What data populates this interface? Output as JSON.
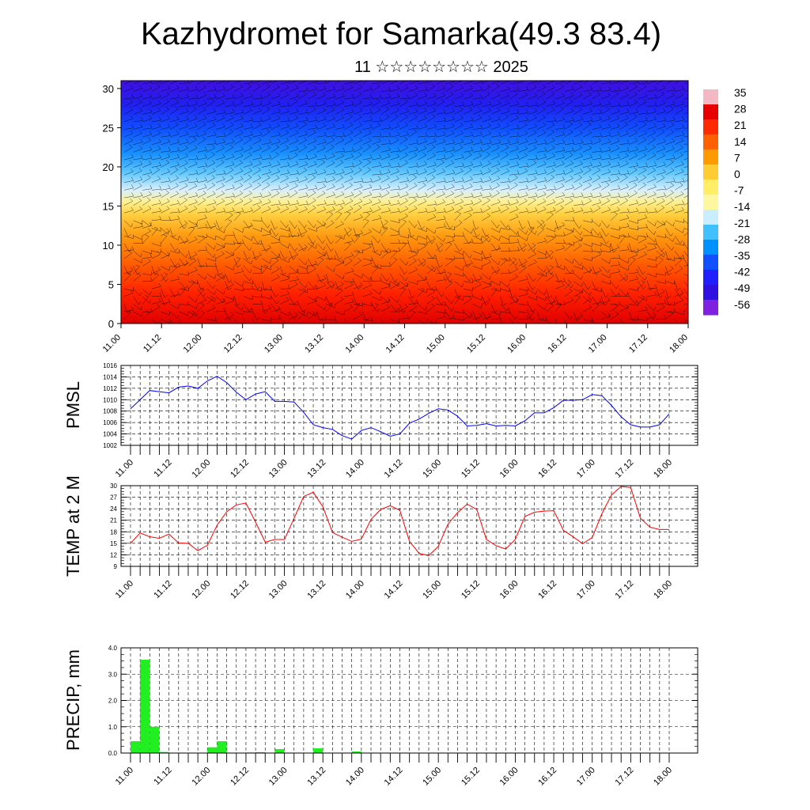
{
  "title": "Kazhydromet for Samarka(49.3 83.4)",
  "subtitle": "11 ☆☆☆☆☆☆☆☆ 2025",
  "time_labels": [
    "11.00",
    "11.12",
    "12.00",
    "12.12",
    "13.00",
    "13.12",
    "14.00",
    "14.12",
    "15.00",
    "15.12",
    "16.00",
    "16.12",
    "17.00",
    "17.12",
    "18.00"
  ],
  "colors": {
    "pmsl_line": "#0000ff",
    "temp_line": "#ff0000",
    "precip_bar": "#22ee22",
    "grid": "#000000"
  },
  "chart_data": [
    {
      "type": "heatmap",
      "description_key": "vertical temperature cross-section with wind barbs",
      "x_ticks": [
        "11.00",
        "11.12",
        "12.00",
        "12.12",
        "13.00",
        "13.12",
        "14.00",
        "14.12",
        "15.00",
        "15.12",
        "16.00",
        "16.12",
        "17.00",
        "17.12",
        "18.00"
      ],
      "y_ticks": [
        0,
        5,
        10,
        15,
        20,
        25,
        30
      ],
      "ylim": [
        0,
        31
      ],
      "colorbar_labels": [
        "35",
        "28",
        "21",
        "14",
        "7",
        "0",
        "-7",
        "-14",
        "-21",
        "-28",
        "-35",
        "-42",
        "-49",
        "-56"
      ],
      "colorbar_colors": [
        "#f4b8c4",
        "#e60000",
        "#ff2a00",
        "#ff6000",
        "#ff9a00",
        "#ffcc33",
        "#ffee66",
        "#fff8a0",
        "#c8eeff",
        "#40c0ff",
        "#0090ff",
        "#1050ff",
        "#2020ff",
        "#3010e0",
        "#8020e0"
      ]
    },
    {
      "type": "line",
      "ylabel": "PMSL",
      "ylim": [
        1002,
        1016
      ],
      "y_ticks": [
        1002,
        1004,
        1006,
        1008,
        1010,
        1012,
        1014,
        1016
      ],
      "x_ticks": [
        "11.00",
        "11.12",
        "12.00",
        "12.12",
        "13.00",
        "13.12",
        "14.00",
        "14.12",
        "15.00",
        "15.12",
        "16.00",
        "16.12",
        "17.00",
        "17.12",
        "18.00"
      ],
      "series": [
        {
          "values": [
            1008.4,
            1010.0,
            1011.6,
            1011.4,
            1011.2,
            1012.2,
            1012.4,
            1012.0,
            1013.3,
            1014.1,
            1013.0,
            1011.3,
            1010.0,
            1011.0,
            1011.4,
            1009.7,
            1009.7,
            1009.6,
            1007.8,
            1005.6,
            1005.1,
            1004.8,
            1003.7,
            1003.1,
            1004.6,
            1005.1,
            1004.4,
            1003.6,
            1004.0,
            1005.9,
            1006.6,
            1007.6,
            1008.4,
            1008.2,
            1007.1,
            1005.4,
            1005.5,
            1005.8,
            1005.4,
            1005.5,
            1005.4,
            1006.3,
            1007.7,
            1007.7,
            1008.6,
            1009.9,
            1009.9,
            1010.0,
            1010.9,
            1010.7,
            1009.0,
            1007.0,
            1005.6,
            1005.2,
            1005.2,
            1005.6,
            1007.5
          ]
        }
      ]
    },
    {
      "type": "line",
      "ylabel": "TEMP at 2 M",
      "ylim": [
        9,
        30
      ],
      "y_ticks": [
        9,
        12,
        15,
        18,
        21,
        24,
        27,
        30
      ],
      "x_ticks": [
        "11.00",
        "11.12",
        "12.00",
        "12.12",
        "13.00",
        "13.12",
        "14.00",
        "14.12",
        "15.00",
        "15.12",
        "16.00",
        "16.12",
        "17.00",
        "17.12",
        "18.00"
      ],
      "series": [
        {
          "values": [
            15.0,
            17.7,
            16.7,
            16.3,
            17.4,
            15.1,
            15.0,
            13.1,
            14.5,
            19.7,
            23.2,
            25.0,
            25.5,
            20.5,
            15.3,
            16.0,
            16.0,
            21.5,
            27.2,
            28.3,
            24.5,
            17.8,
            16.6,
            15.5,
            16.1,
            21.2,
            23.8,
            24.8,
            23.6,
            15.5,
            12.4,
            11.8,
            14.2,
            20.0,
            23.0,
            25.2,
            23.8,
            16.0,
            14.4,
            13.5,
            16.0,
            22.0,
            23.1,
            23.4,
            23.5,
            18.4,
            16.7,
            14.9,
            16.5,
            22.7,
            27.6,
            29.8,
            29.5,
            21.6,
            19.2,
            18.6,
            18.6
          ]
        }
      ]
    },
    {
      "type": "bar",
      "ylabel": "PRECIP, mm",
      "ylim": [
        0,
        4
      ],
      "y_ticks": [
        "0.0",
        "1.0",
        "2.0",
        "3.0",
        "4.0"
      ],
      "x_ticks": [
        "11.00",
        "11.12",
        "12.00",
        "12.12",
        "13.00",
        "13.12",
        "14.00",
        "14.12",
        "15.00",
        "15.12",
        "16.00",
        "16.12",
        "17.00",
        "17.12",
        "18.00"
      ],
      "values": [
        0.45,
        3.55,
        1.0,
        0.04,
        0,
        0,
        0,
        0,
        0.22,
        0.45,
        0,
        0,
        0.02,
        0.03,
        0,
        0.15,
        0,
        0,
        0,
        0.18,
        0,
        0,
        0,
        0.06,
        0,
        0,
        0,
        0,
        0,
        0,
        0,
        0,
        0,
        0,
        0,
        0,
        0,
        0,
        0,
        0,
        0,
        0,
        0,
        0,
        0,
        0,
        0,
        0,
        0,
        0,
        0,
        0,
        0,
        0,
        0,
        0
      ]
    }
  ]
}
